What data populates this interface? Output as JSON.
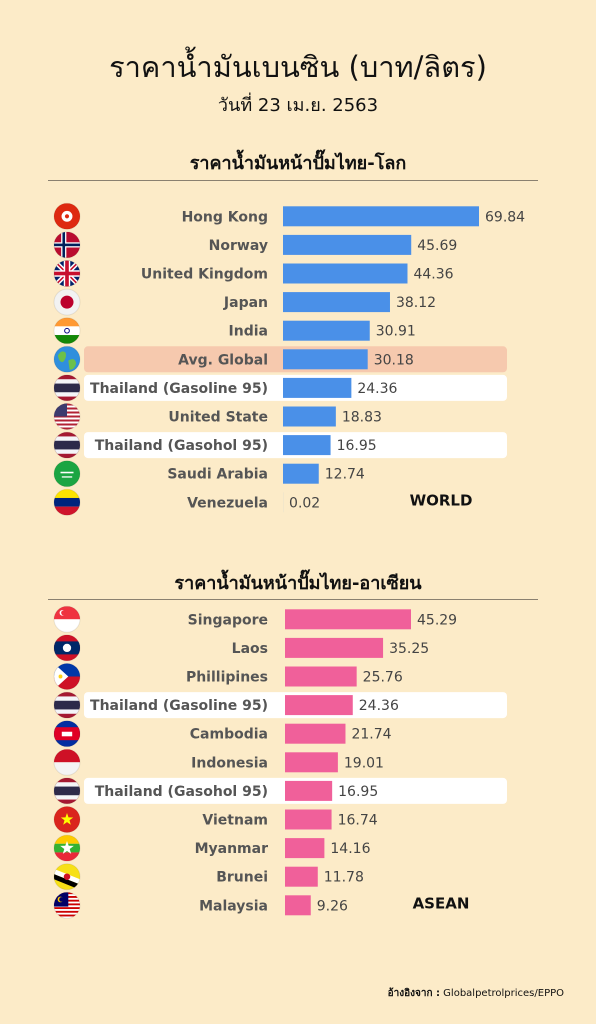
{
  "header": {
    "title": "ราคาน้ำมันเบนซิน (บาท/ลิตร)",
    "date": "วันที่ 23 เม.ย. 2563"
  },
  "colors": {
    "background": "#FCEBC8",
    "world_bar": "#4A90E8",
    "asean_bar": "#F0609A",
    "highlight_global": "#F6C9AE",
    "highlight_thailand": "#FFFFFF"
  },
  "chart_data": [
    {
      "type": "bar",
      "orientation": "horizontal",
      "title": "ราคาน้ำมันหน้าปั๊มไทย-โลก",
      "tag": "WORLD",
      "categories": [
        "Hong Kong",
        "Norway",
        "United Kingdom",
        "Japan",
        "India",
        "Avg. Global",
        "Thailand (Gasoline 95)",
        "United State",
        "Thailand (Gasohol 95)",
        "Saudi Arabia",
        "Venezuela"
      ],
      "values": [
        69.84,
        45.69,
        44.36,
        38.12,
        30.91,
        30.18,
        24.36,
        18.83,
        16.95,
        12.74,
        0.02
      ],
      "value_labels": [
        "69.84",
        "45.69",
        "44.36",
        "38.12",
        "30.91",
        "30.18",
        "24.36",
        "18.83",
        "16.95",
        "12.74",
        "0.02"
      ],
      "flags": [
        "hong-kong-flag-icon",
        "norway-flag-icon",
        "uk-flag-icon",
        "japan-flag-icon",
        "india-flag-icon",
        "globe-icon",
        "thailand-flag-icon",
        "usa-flag-icon",
        "thailand-flag-icon",
        "saudi-arabia-flag-icon",
        "venezuela-flag-icon"
      ],
      "highlight": [
        "none",
        "none",
        "none",
        "none",
        "none",
        "global",
        "thailand",
        "none",
        "thailand",
        "none",
        "none"
      ]
    },
    {
      "type": "bar",
      "orientation": "horizontal",
      "title": "ราคาน้ำมันหน้าปั๊มไทย-อาเซียน",
      "tag": "ASEAN",
      "categories": [
        "Singapore",
        "Laos",
        "Phillipines",
        "Thailand (Gasoline 95)",
        "Cambodia",
        "Indonesia",
        "Thailand (Gasohol 95)",
        "Vietnam",
        "Myanmar",
        "Brunei",
        "Malaysia"
      ],
      "values": [
        45.29,
        35.25,
        25.76,
        24.36,
        21.74,
        19.01,
        16.95,
        16.74,
        14.16,
        11.78,
        9.26
      ],
      "value_labels": [
        "45.29",
        "35.25",
        "25.76",
        "24.36",
        "21.74",
        "19.01",
        "16.95",
        "16.74",
        "14.16",
        "11.78",
        "9.26"
      ],
      "flags": [
        "singapore-flag-icon",
        "laos-flag-icon",
        "philippines-flag-icon",
        "thailand-flag-icon",
        "cambodia-flag-icon",
        "indonesia-flag-icon",
        "thailand-flag-icon",
        "vietnam-flag-icon",
        "myanmar-flag-icon",
        "brunei-flag-icon",
        "malaysia-flag-icon"
      ],
      "highlight": [
        "none",
        "none",
        "none",
        "thailand",
        "none",
        "none",
        "thailand",
        "none",
        "none",
        "none",
        "none"
      ]
    }
  ],
  "source": {
    "label": "อ้างอิงจาก :",
    "text": "Globalpetrolprices/EPPO"
  }
}
